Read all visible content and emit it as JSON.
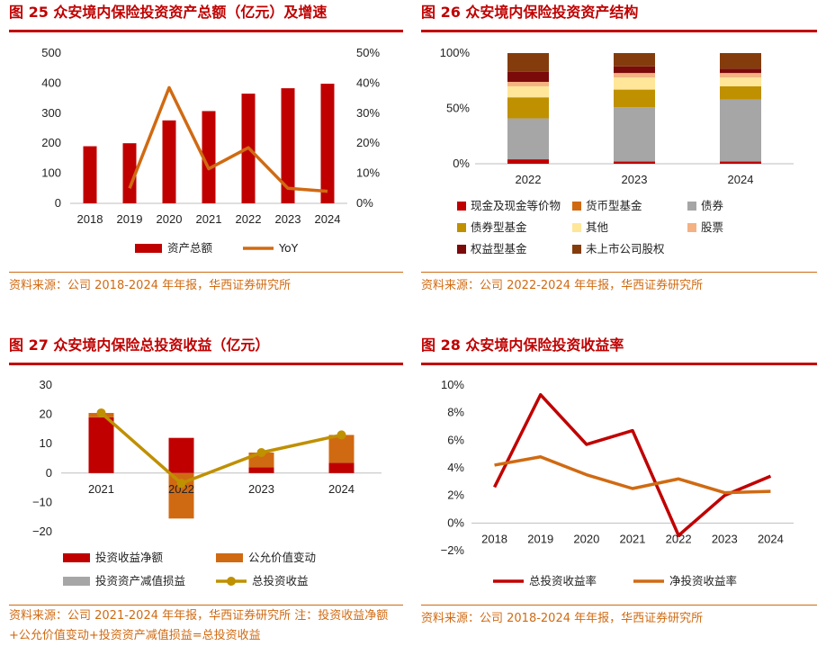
{
  "panels": [
    {
      "title": "图 25   众安境内保险投资资产总额（亿元）及增速",
      "source": "资料来源：公司 2018-2024 年年报，华西证券研究所"
    },
    {
      "title": "图 26   众安境内保险投资资产结构",
      "source": "资料来源：公司 2022-2024 年年报，华西证券研究所"
    },
    {
      "title": "图 27   众安境内保险总投资收益（亿元）",
      "source": "资料来源：公司 2021-2024 年年报，华西证券研究所    注：投资收益净额+公允价值变动+投资资产减值损益=总投资收益"
    },
    {
      "title": "图 28   众安境内保险投资收益率",
      "source": "资料来源：公司 2018-2024 年年报，华西证券研究所"
    }
  ],
  "chart_data": [
    {
      "type": "bar",
      "categories": [
        "2018",
        "2019",
        "2020",
        "2021",
        "2022",
        "2023",
        "2024"
      ],
      "series": [
        {
          "name": "资产总额",
          "type": "bar",
          "axis": "left",
          "color": "#c00000",
          "values": [
            190,
            200,
            276,
            307,
            365,
            383,
            398
          ]
        },
        {
          "name": "YoY",
          "type": "line",
          "axis": "right",
          "color": "#d06a12",
          "values": [
            null,
            5.0,
            38.5,
            11.5,
            18.5,
            5.0,
            4.0
          ]
        }
      ],
      "ylim": [
        0,
        500
      ],
      "y_ticks": [
        "0",
        "100",
        "200",
        "300",
        "400",
        "500"
      ],
      "y2lim": [
        0,
        50
      ],
      "y2_ticks": [
        "0%",
        "10%",
        "20%",
        "30%",
        "40%",
        "50%"
      ]
    },
    {
      "type": "bar",
      "stacked": true,
      "categories": [
        "2022",
        "2023",
        "2024"
      ],
      "series": [
        {
          "name": "现金及现金等价物",
          "color": "#c00000",
          "values": [
            4,
            2,
            2
          ]
        },
        {
          "name": "货币型基金",
          "color": "#d06a12",
          "values": [
            0,
            0,
            0
          ]
        },
        {
          "name": "债券",
          "color": "#a6a6a6",
          "values": [
            37,
            49,
            56
          ]
        },
        {
          "name": "债券型基金",
          "color": "#bf9000",
          "values": [
            19,
            16,
            12
          ]
        },
        {
          "name": "其他",
          "color": "#ffe699",
          "values": [
            10,
            11,
            8
          ]
        },
        {
          "name": "股票",
          "color": "#f4b183",
          "values": [
            4,
            4,
            4
          ]
        },
        {
          "name": "权益型基金",
          "color": "#7b0a0a",
          "values": [
            9,
            6,
            4
          ]
        },
        {
          "name": "未上市公司股权",
          "color": "#843c0c",
          "values": [
            17,
            12,
            14
          ]
        }
      ],
      "ylim": [
        0,
        100
      ],
      "y_ticks": [
        "0%",
        "50%",
        "100%"
      ]
    },
    {
      "type": "bar",
      "stacked": true,
      "categories": [
        "2021",
        "2022",
        "2023",
        "2024"
      ],
      "series": [
        {
          "name": "投资收益净额",
          "type": "bar",
          "color": "#c00000",
          "values": [
            19.0,
            12.0,
            2.0,
            3.5
          ]
        },
        {
          "name": "公允价值变动",
          "type": "bar",
          "color": "#d06a12",
          "values": [
            1.5,
            -15.5,
            5.0,
            9.5
          ]
        },
        {
          "name": "投资资产减值损益",
          "type": "bar",
          "color": "#a6a6a6",
          "values": [
            0,
            0,
            0,
            0
          ]
        },
        {
          "name": "总投资收益",
          "type": "line",
          "color": "#bf9000",
          "values": [
            20.5,
            -3.5,
            7.0,
            13.0
          ]
        }
      ],
      "ylim": [
        -20,
        30
      ],
      "y_ticks": [
        "−20",
        "−10",
        "0",
        "10",
        "20",
        "30"
      ]
    },
    {
      "type": "line",
      "categories": [
        "2018",
        "2019",
        "2020",
        "2021",
        "2022",
        "2023",
        "2024"
      ],
      "series": [
        {
          "name": "总投资收益率",
          "color": "#c00000",
          "values": [
            2.6,
            9.3,
            5.7,
            6.7,
            -0.9,
            2.0,
            3.4
          ]
        },
        {
          "name": "净投资收益率",
          "color": "#d06a12",
          "values": [
            4.2,
            4.8,
            3.5,
            2.5,
            3.2,
            2.2,
            2.3
          ]
        }
      ],
      "ylim": [
        -2,
        10
      ],
      "y_ticks": [
        "−2%",
        "0%",
        "2%",
        "4%",
        "6%",
        "8%",
        "10%"
      ]
    }
  ]
}
